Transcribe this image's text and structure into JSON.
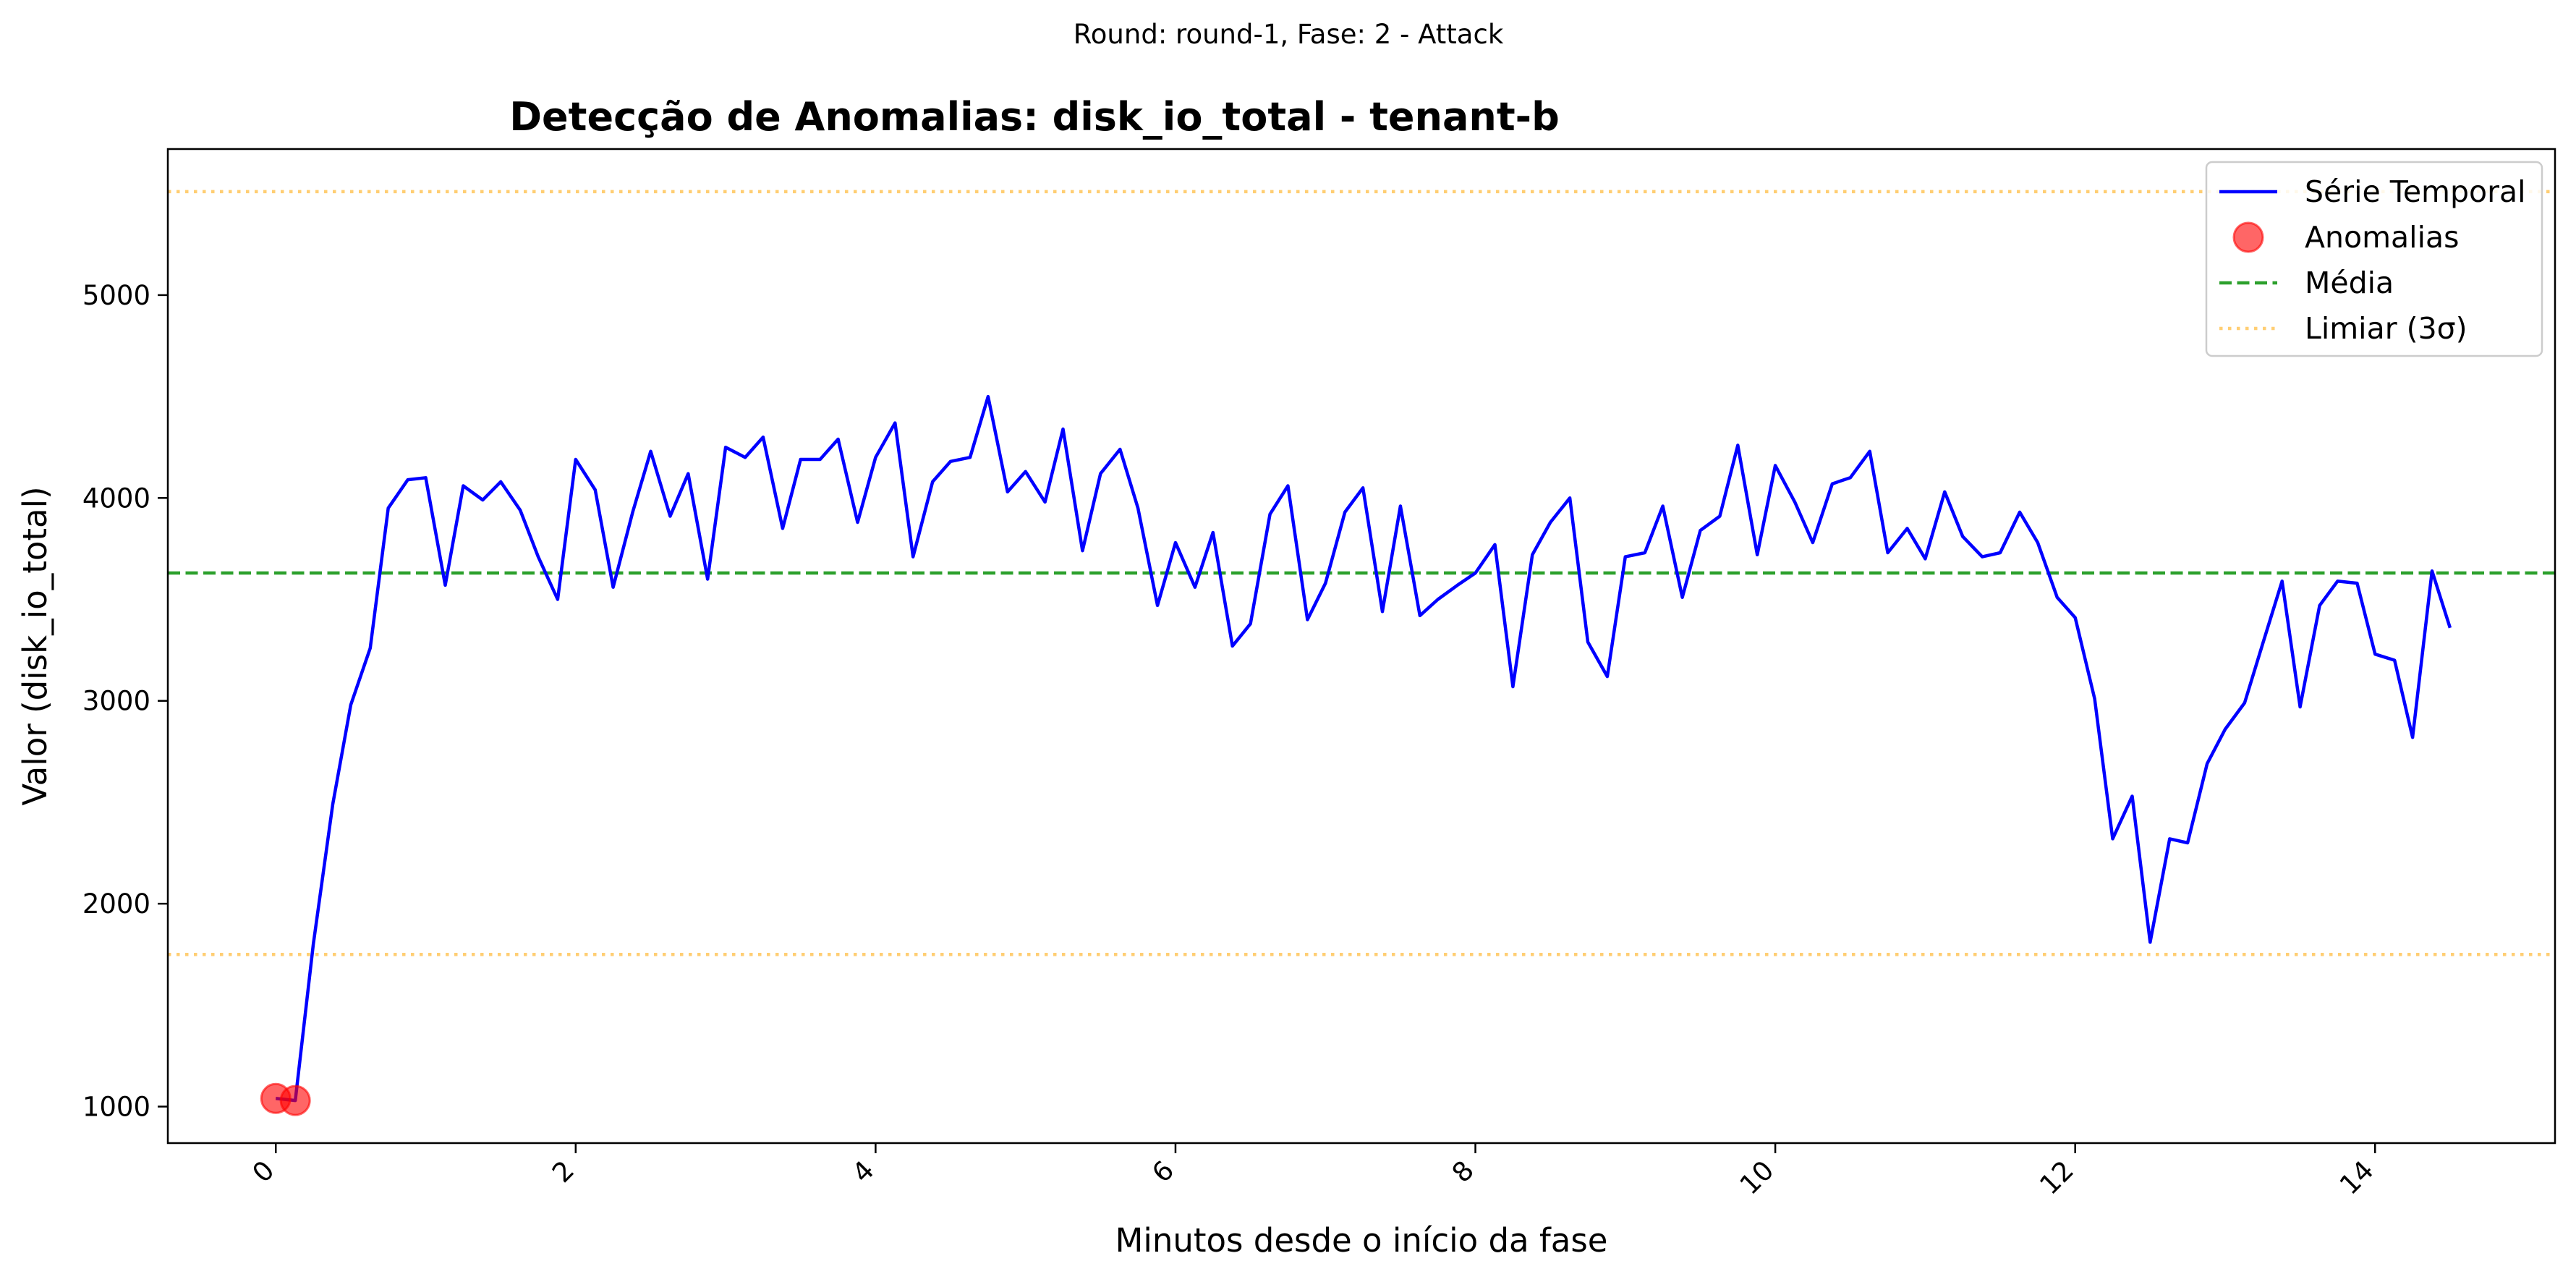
{
  "chart_data": {
    "type": "line",
    "suptitle": "Round: round-1, Fase: 2 - Attack",
    "title": "Detecção de Anomalias: disk_io_total - tenant-b",
    "xlabel": "Minutos desde o início da fase",
    "ylabel": "Valor (disk_io_total)",
    "xlim": [
      -0.72,
      15.2
    ],
    "ylim": [
      820,
      5720
    ],
    "xticks": [
      0,
      2,
      4,
      6,
      8,
      10,
      12,
      14
    ],
    "yticks": [
      1000,
      2000,
      3000,
      4000,
      5000
    ],
    "grid": false,
    "legend_position": "top-right",
    "legend": [
      "Série Temporal",
      "Anomalias",
      "Média",
      "Limiar (3σ)"
    ],
    "colors": {
      "series": "#0000ff",
      "anomalies": "#ff0000",
      "mean": "#2ca02c",
      "threshold": "#ffa500"
    },
    "mean": 3630,
    "threshold_upper": 5510,
    "threshold_lower": 1750,
    "series": [
      {
        "name": "Série Temporal",
        "x": [
          0,
          0.13,
          0.25,
          0.38,
          0.5,
          0.63,
          0.75,
          0.88,
          1.0,
          1.13,
          1.25,
          1.38,
          1.5,
          1.63,
          1.75,
          1.88,
          2.0,
          2.13,
          2.25,
          2.38,
          2.5,
          2.63,
          2.75,
          2.88,
          3.0,
          3.13,
          3.25,
          3.38,
          3.5,
          3.63,
          3.75,
          3.88,
          4.0,
          4.13,
          4.25,
          4.38,
          4.5,
          4.63,
          4.75,
          4.88,
          5.0,
          5.13,
          5.25,
          5.38,
          5.5,
          5.63,
          5.75,
          5.88,
          6.0,
          6.13,
          6.25,
          6.38,
          6.5,
          6.63,
          6.75,
          6.88,
          7.0,
          7.13,
          7.25,
          7.38,
          7.5,
          7.63,
          7.75,
          7.88,
          8.0,
          8.13,
          8.25,
          8.38,
          8.5,
          8.63,
          8.75,
          8.88,
          9.0,
          9.13,
          9.25,
          9.38,
          9.5,
          9.63,
          9.75,
          9.88,
          10.0,
          10.13,
          10.25,
          10.38,
          10.5,
          10.63,
          10.75,
          10.88,
          11.0,
          11.13,
          11.25,
          11.38,
          11.5,
          11.63,
          11.75,
          11.88,
          12.0,
          12.13,
          12.25,
          12.38,
          12.5,
          12.63,
          12.75,
          12.88,
          13.0,
          13.13,
          13.25,
          13.38,
          13.5,
          13.63,
          13.75,
          13.88,
          14.0,
          14.13,
          14.25,
          14.38,
          14.5
        ],
        "values": [
          1040,
          1030,
          1800,
          2490,
          2980,
          3260,
          3950,
          4090,
          4100,
          3570,
          4060,
          3990,
          4080,
          3940,
          3710,
          3500,
          4190,
          4040,
          3560,
          3930,
          4230,
          3910,
          4120,
          3600,
          4250,
          4200,
          4300,
          3850,
          4190,
          4190,
          4290,
          3880,
          4200,
          4370,
          3710,
          4080,
          4180,
          4200,
          4500,
          4030,
          4130,
          3980,
          4340,
          3740,
          4120,
          4240,
          3950,
          3470,
          3780,
          3560,
          3830,
          3270,
          3380,
          3920,
          4060,
          3400,
          3580,
          3930,
          4050,
          3440,
          3960,
          3420,
          3500,
          3570,
          3630,
          3770,
          3070,
          3720,
          3880,
          4000,
          3290,
          3120,
          3710,
          3730,
          3960,
          3510,
          3840,
          3910,
          4260,
          3720,
          4160,
          3980,
          3780,
          4070,
          4100,
          4230,
          3730,
          3850,
          3700,
          4030,
          3810,
          3710,
          3730,
          3930,
          3780,
          3510,
          3410,
          3010,
          2320,
          2530,
          1810,
          2320,
          2300,
          2690,
          2860,
          2990,
          3280,
          3590,
          2970,
          3470,
          3590,
          3580,
          3230,
          3200,
          2820,
          3640,
          3360
        ]
      },
      {
        "name": "Anomalias",
        "x": [
          0,
          0.13
        ],
        "values": [
          1040,
          1030
        ]
      }
    ]
  }
}
